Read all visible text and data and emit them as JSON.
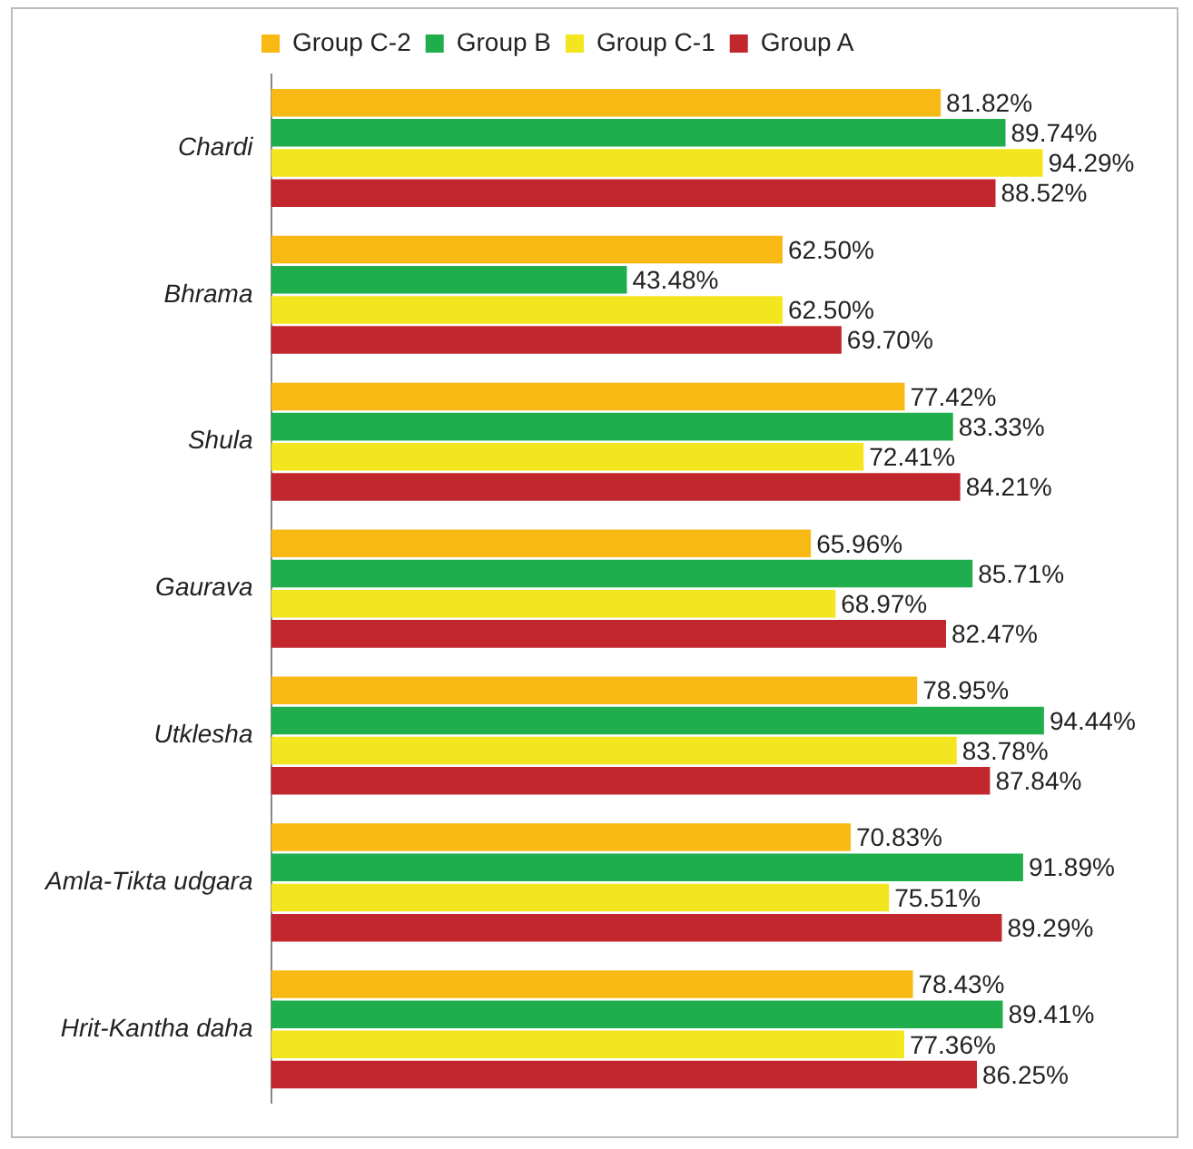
{
  "chart_data": {
    "type": "bar",
    "orientation": "horizontal",
    "categories": [
      "Chardi",
      "Bhrama",
      "Shula",
      "Gaurava",
      "Utklesha",
      "Amla-Tikta udgara",
      "Hrit-Kantha daha"
    ],
    "series": [
      {
        "name": "Group C-2",
        "color": "#f9b914",
        "values": [
          81.82,
          62.5,
          77.42,
          65.96,
          78.95,
          70.83,
          78.43
        ],
        "value_labels": [
          "81.82%",
          "62.50%",
          "77.42%",
          "65.96%",
          "78.95%",
          "70.83%",
          "78.43%"
        ]
      },
      {
        "name": "Group B",
        "color": "#1fae4b",
        "values": [
          89.74,
          43.48,
          83.33,
          85.71,
          94.44,
          91.89,
          89.41
        ],
        "value_labels": [
          "89.74%",
          "43.48%",
          "83.33%",
          "85.71%",
          "94.44%",
          "91.89%",
          "89.41%"
        ]
      },
      {
        "name": "Group C-1",
        "color": "#f4e61e",
        "values": [
          94.29,
          62.5,
          72.41,
          68.97,
          83.78,
          75.51,
          77.36
        ],
        "value_labels": [
          "94.29%",
          "62.50%",
          "72.41%",
          "68.97%",
          "83.78%",
          "75.51%",
          "77.36%"
        ]
      },
      {
        "name": "Group A",
        "color": "#c1272d",
        "values": [
          88.52,
          69.7,
          84.21,
          82.47,
          87.84,
          89.29,
          86.25
        ],
        "value_labels": [
          "88.52%",
          "69.70%",
          "84.21%",
          "82.47%",
          "87.84%",
          "89.29%",
          "86.25%"
        ]
      }
    ],
    "tick_labels": "y",
    "grid": false,
    "legend": "top"
  }
}
